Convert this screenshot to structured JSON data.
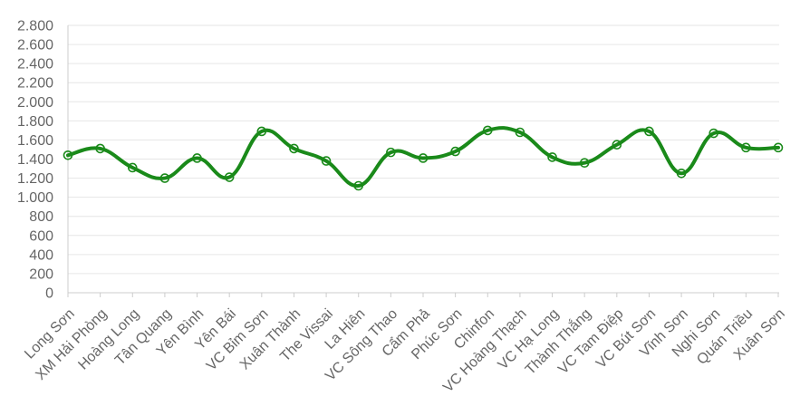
{
  "chart_data": {
    "type": "line",
    "title": "",
    "xlabel": "",
    "ylabel": "",
    "ylim": [
      0,
      2800
    ],
    "y_ticks": [
      0,
      200,
      400,
      600,
      800,
      1000,
      1200,
      1400,
      1600,
      1800,
      2000,
      2200,
      2400,
      2600,
      2800
    ],
    "y_tick_labels": [
      "0",
      "200",
      "400",
      "600",
      "800",
      "1.000",
      "1.200",
      "1.400",
      "1.600",
      "1.800",
      "2.000",
      "2.200",
      "2.400",
      "2.600",
      "2.800"
    ],
    "grid": true,
    "legend": "none",
    "line_color": "#1a8a1a",
    "categories": [
      "Long Sơn",
      "XM Hải Phòng",
      "Hoàng Long",
      "Tân Quang",
      "Yên Bình",
      "Yên Bái",
      "VC Bỉm Sơn",
      "Xuân Thành",
      "The Vissai",
      "La Hiên",
      "VC Sông Thao",
      "Cẩm Phả",
      "Phúc Sơn",
      "Chinfon",
      "VC Hoàng Thạch",
      "VC Hạ Long",
      "Thành Thắng",
      "VC Tam Điệp",
      "VC Bút Sơn",
      "Vĩnh Sơn",
      "Nghi Sơn",
      "Quán Triều",
      "Xuân Sơn"
    ],
    "series": [
      {
        "values": [
          1440,
          1510,
          1310,
          1200,
          1410,
          1210,
          1690,
          1510,
          1380,
          1120,
          1470,
          1410,
          1480,
          1700,
          1680,
          1420,
          1360,
          1550,
          1690,
          1250,
          1670,
          1520,
          1520
        ]
      }
    ]
  }
}
